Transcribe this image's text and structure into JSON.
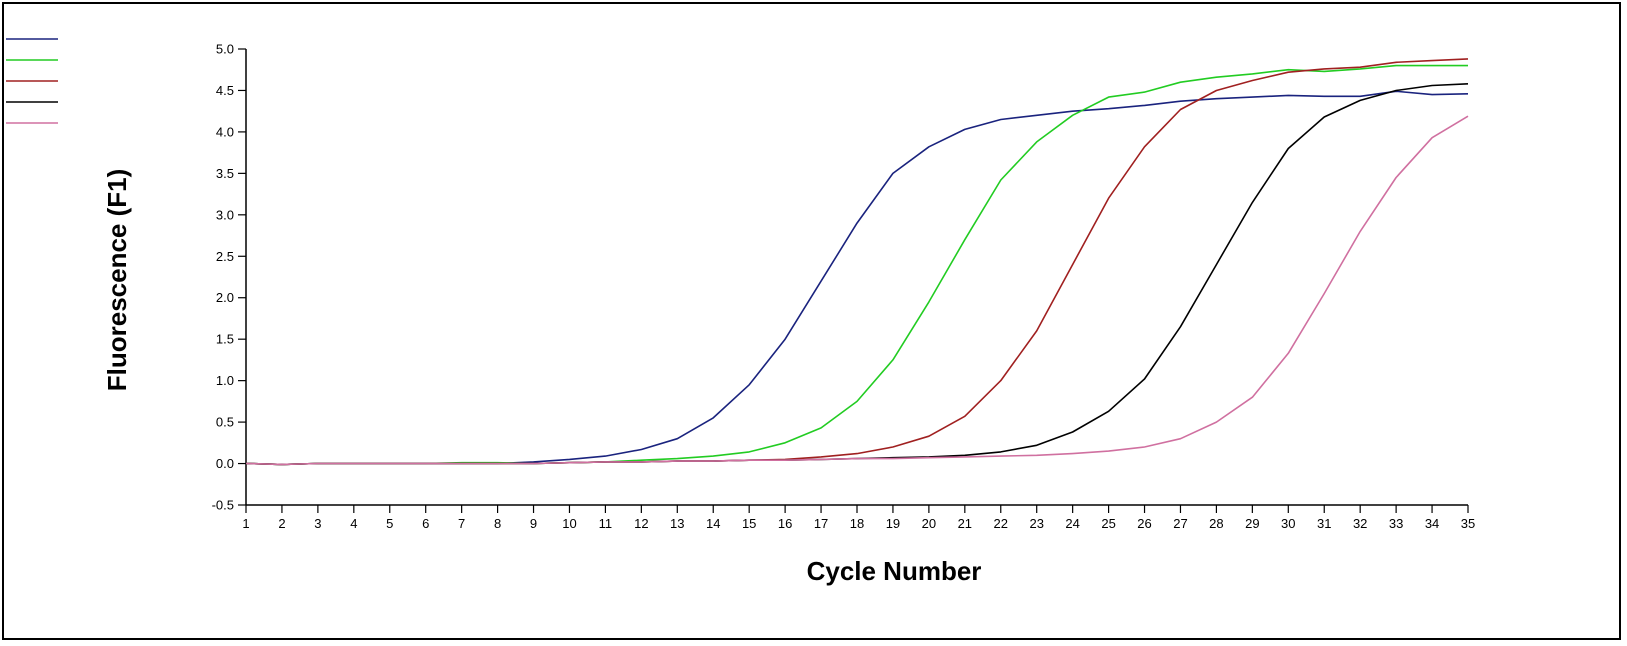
{
  "chart_data": {
    "type": "line",
    "title": "",
    "xlabel": "Cycle Number",
    "ylabel": "Fluorescence (F1)",
    "xlim": [
      1,
      35
    ],
    "ylim": [
      -0.5,
      5.0
    ],
    "x_ticks": [
      1,
      2,
      3,
      4,
      5,
      6,
      7,
      8,
      9,
      10,
      11,
      12,
      13,
      14,
      15,
      16,
      17,
      18,
      19,
      20,
      21,
      22,
      23,
      24,
      25,
      26,
      27,
      28,
      29,
      30,
      31,
      32,
      33,
      34,
      35
    ],
    "y_ticks": [
      "-0.5",
      "0.0",
      "0.5",
      "1.0",
      "1.5",
      "2.0",
      "2.5",
      "3.0",
      "3.5",
      "4.0",
      "4.5",
      "5.0"
    ],
    "grid": false,
    "legend_position": "top-left",
    "x": [
      1,
      2,
      3,
      4,
      5,
      6,
      7,
      8,
      9,
      10,
      11,
      12,
      13,
      14,
      15,
      16,
      17,
      18,
      19,
      20,
      21,
      22,
      23,
      24,
      25,
      26,
      27,
      28,
      29,
      30,
      31,
      32,
      33,
      34,
      35
    ],
    "series": [
      {
        "color": "#1a237e",
        "values": [
          0.0,
          -0.01,
          0.0,
          0.0,
          0.0,
          0.0,
          0.0,
          0.0,
          0.02,
          0.05,
          0.09,
          0.17,
          0.3,
          0.55,
          0.95,
          1.5,
          2.2,
          2.9,
          3.5,
          3.82,
          4.03,
          4.15,
          4.2,
          4.25,
          4.28,
          4.32,
          4.37,
          4.4,
          4.42,
          4.44,
          4.43,
          4.43,
          4.49,
          4.45,
          4.46
        ]
      },
      {
        "color": "#22cc22",
        "values": [
          0.0,
          -0.01,
          0.0,
          0.0,
          0.0,
          0.0,
          0.01,
          0.01,
          0.0,
          0.01,
          0.02,
          0.04,
          0.06,
          0.09,
          0.14,
          0.25,
          0.43,
          0.75,
          1.25,
          1.95,
          2.7,
          3.42,
          3.88,
          4.2,
          4.42,
          4.48,
          4.6,
          4.66,
          4.7,
          4.75,
          4.73,
          4.76,
          4.8,
          4.8,
          4.8
        ]
      },
      {
        "color": "#a02020",
        "values": [
          0.0,
          -0.01,
          0.0,
          0.0,
          0.0,
          0.0,
          0.0,
          0.0,
          0.0,
          0.01,
          0.02,
          0.02,
          0.03,
          0.03,
          0.04,
          0.05,
          0.08,
          0.12,
          0.2,
          0.33,
          0.57,
          1.0,
          1.6,
          2.4,
          3.2,
          3.82,
          4.27,
          4.5,
          4.62,
          4.72,
          4.76,
          4.78,
          4.84,
          4.86,
          4.88
        ]
      },
      {
        "color": "#000000",
        "values": [
          0.0,
          -0.01,
          0.0,
          0.0,
          0.0,
          0.0,
          0.0,
          0.0,
          0.0,
          0.01,
          0.02,
          0.02,
          0.03,
          0.03,
          0.04,
          0.04,
          0.05,
          0.06,
          0.07,
          0.08,
          0.1,
          0.14,
          0.22,
          0.38,
          0.63,
          1.02,
          1.65,
          2.4,
          3.15,
          3.8,
          4.18,
          4.38,
          4.5,
          4.56,
          4.58
        ]
      },
      {
        "color": "#d070a0",
        "values": [
          0.0,
          -0.01,
          0.0,
          0.0,
          0.0,
          0.0,
          0.0,
          0.0,
          0.0,
          0.01,
          0.02,
          0.02,
          0.03,
          0.03,
          0.04,
          0.04,
          0.05,
          0.06,
          0.06,
          0.07,
          0.08,
          0.09,
          0.1,
          0.12,
          0.15,
          0.2,
          0.3,
          0.5,
          0.8,
          1.33,
          2.05,
          2.8,
          3.45,
          3.93,
          4.19
        ]
      }
    ]
  }
}
